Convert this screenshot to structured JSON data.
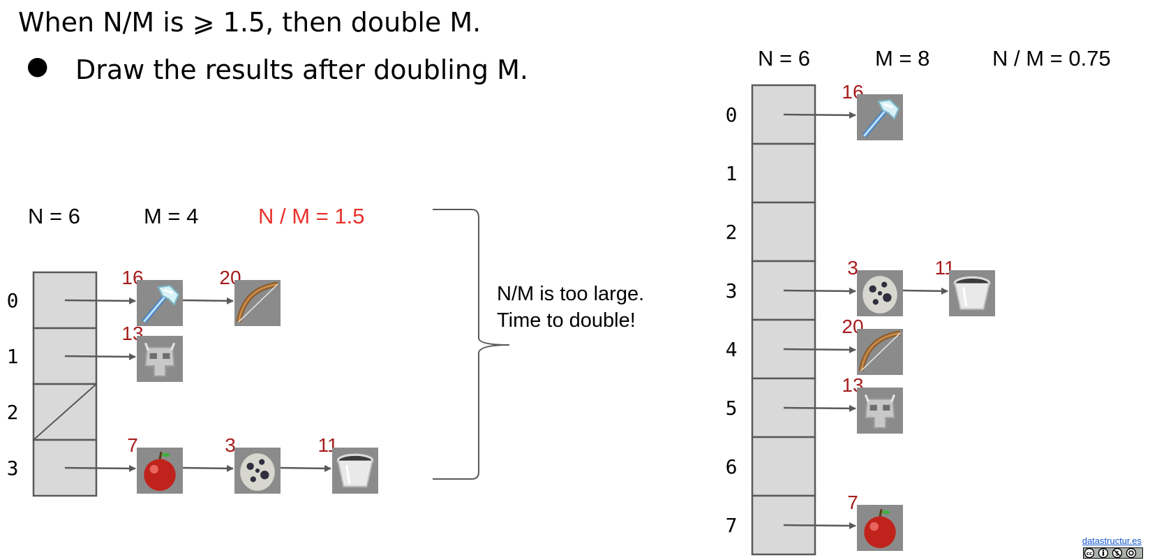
{
  "heading": "When N/M is ⩾ 1.5, then double M.",
  "bullet": "Draw the results after doubling M.",
  "left": {
    "n_label": "N = 6",
    "m_label": "M = 4",
    "ratio_label": "N / M = 1.5",
    "indices": [
      "0",
      "1",
      "2",
      "3"
    ],
    "buckets": [
      [
        {
          "key": "16",
          "item": "axe-icon"
        },
        {
          "key": "20",
          "item": "bow-icon"
        }
      ],
      [
        {
          "key": "13",
          "item": "helmet-icon"
        }
      ],
      [],
      [
        {
          "key": "7",
          "item": "apple-icon"
        },
        {
          "key": "3",
          "item": "egg-icon"
        },
        {
          "key": "11",
          "item": "bucket-icon"
        }
      ]
    ]
  },
  "note": {
    "line1": "N/M is too large.",
    "line2": "Time to double!"
  },
  "right": {
    "n_label": "N = 6",
    "m_label": "M = 8",
    "ratio_label": "N / M = 0.75",
    "indices": [
      "0",
      "1",
      "2",
      "3",
      "4",
      "5",
      "6",
      "7"
    ],
    "buckets": [
      [
        {
          "key": "16",
          "item": "axe-icon"
        }
      ],
      [],
      [],
      [
        {
          "key": "3",
          "item": "egg-icon"
        },
        {
          "key": "11",
          "item": "bucket-icon"
        }
      ],
      [
        {
          "key": "20",
          "item": "bow-icon"
        }
      ],
      [
        {
          "key": "13",
          "item": "helmet-icon"
        }
      ],
      [],
      [
        {
          "key": "7",
          "item": "apple-icon"
        }
      ]
    ]
  },
  "credit": "datastructur.es",
  "license_icon": "cc-by-nc-sa-icon",
  "colors": {
    "cell_fill": "#d9d9d9",
    "cell_stroke": "#595959",
    "arrow": "#595959",
    "key_text": "#a61c1c",
    "ratio_red": "#e8302a",
    "link": "#1155cc"
  }
}
